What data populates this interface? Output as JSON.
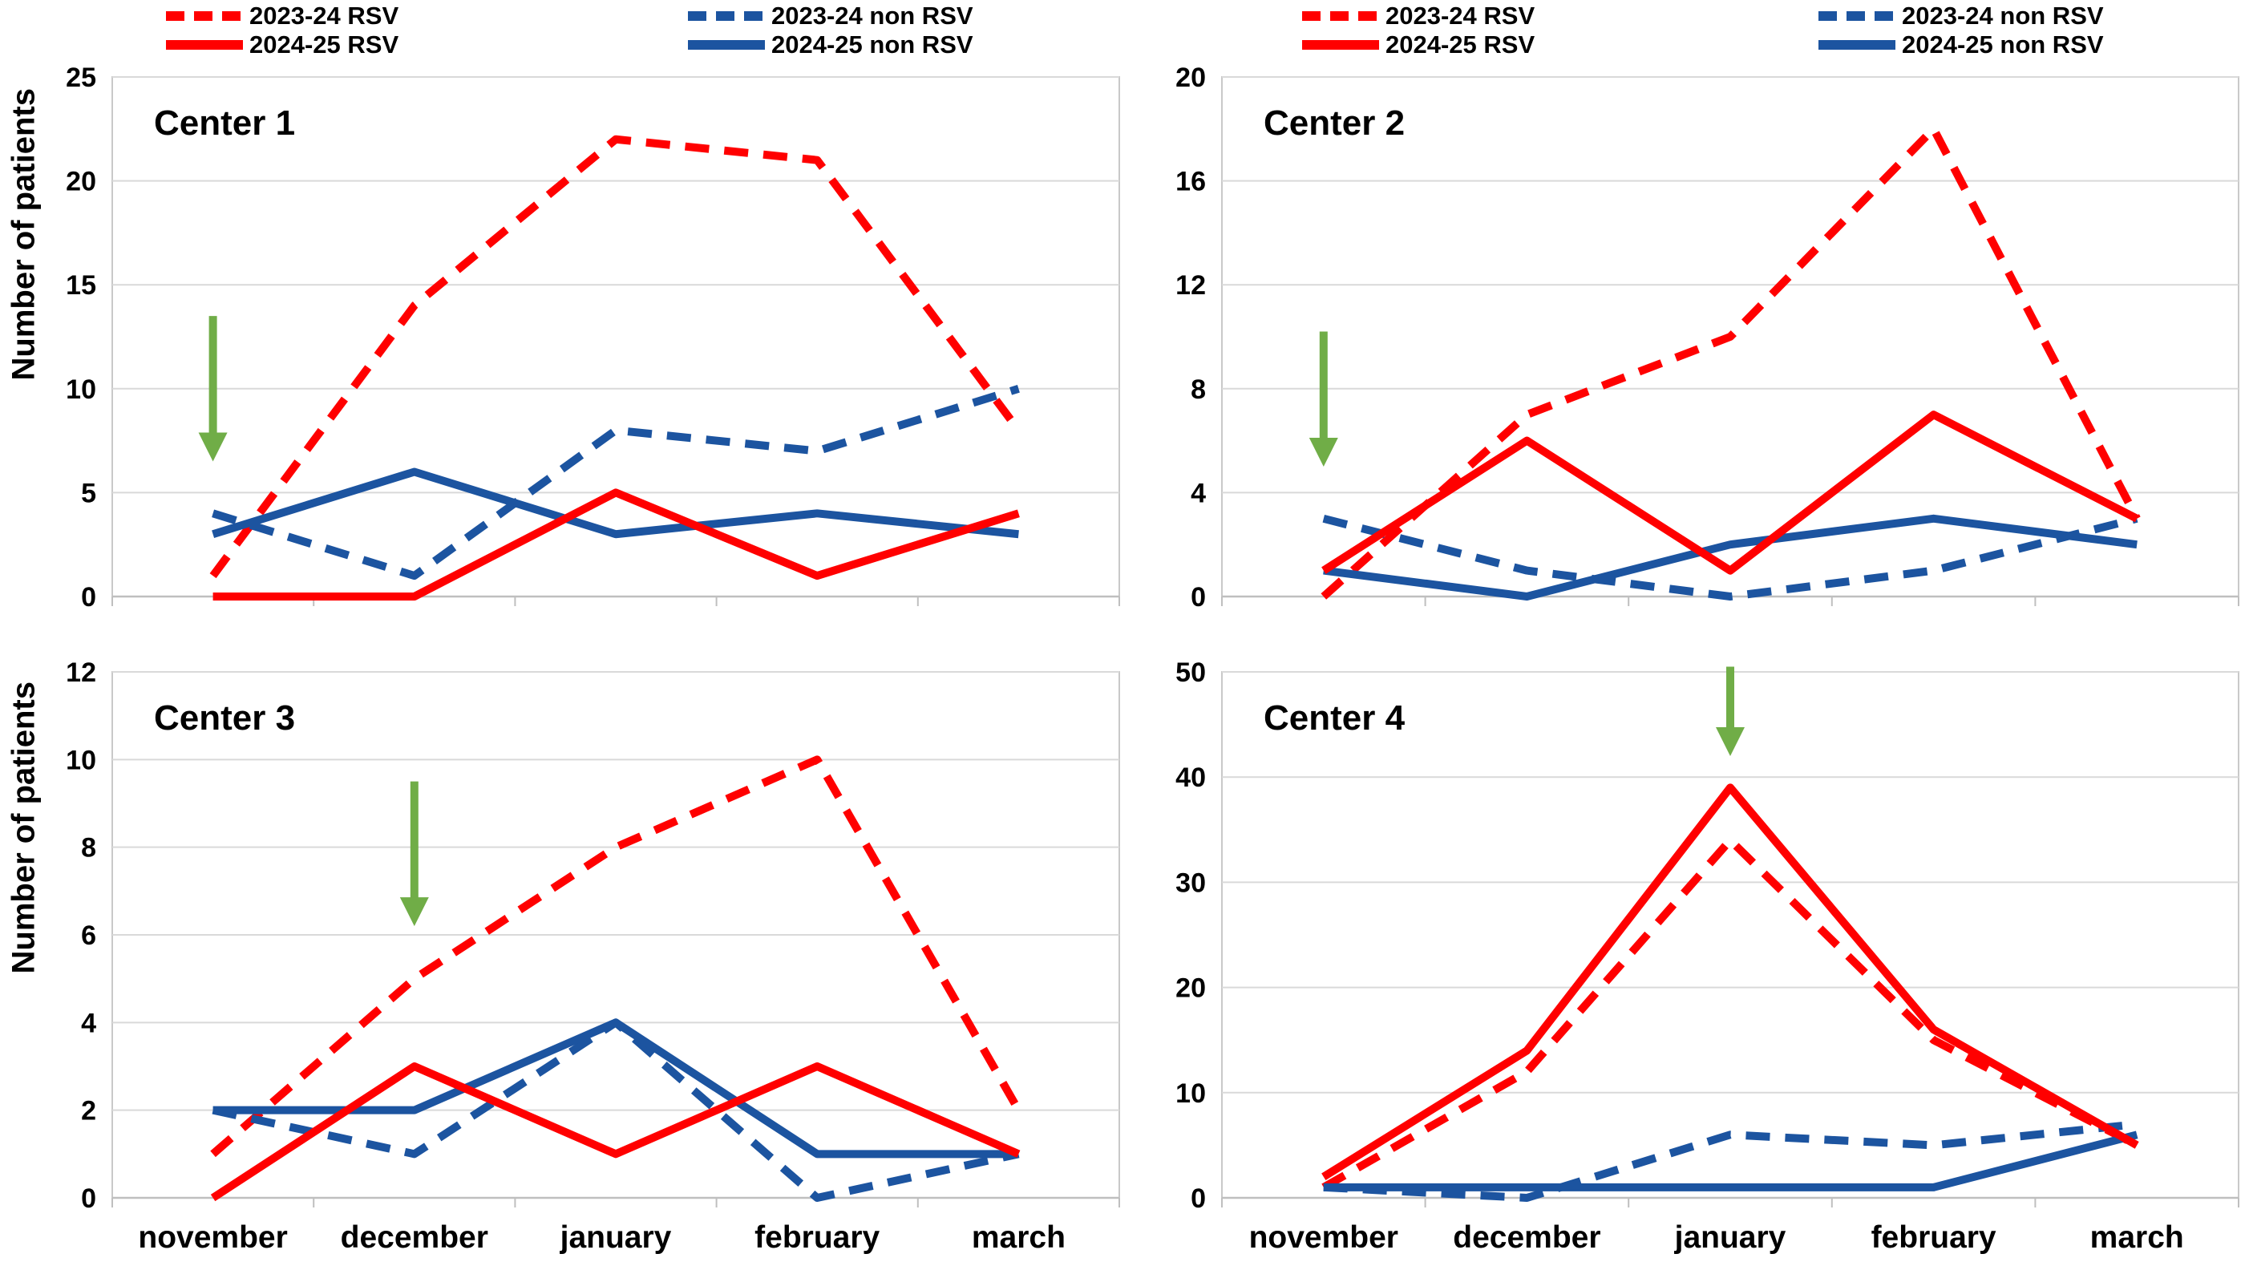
{
  "ylabel": "Number of patients",
  "months": [
    "november",
    "december",
    "january",
    "february",
    "march"
  ],
  "colors": {
    "rsv_red": "#FF0000",
    "non_rsv_blue": "#1C54A0",
    "arrow_green": "#70AD47",
    "gridline": "#D9D9D9",
    "axis_line": "#BFBFBF",
    "plot_border": "#C9C9C9",
    "text": "#000000"
  },
  "legend": {
    "items": [
      {
        "label": "2023-24 RSV",
        "style": "dashed",
        "color_key": "rsv_red"
      },
      {
        "label": "2024-25 RSV",
        "style": "solid",
        "color_key": "rsv_red"
      },
      {
        "label": "2023-24 non RSV",
        "style": "dashed",
        "color_key": "non_rsv_blue"
      },
      {
        "label": "2024-25 non RSV",
        "style": "solid",
        "color_key": "non_rsv_blue"
      }
    ]
  },
  "chart_data": [
    {
      "type": "line",
      "title": "Center 1",
      "xlabel": "",
      "ylabel": "Number of patients",
      "ylim": [
        0,
        25
      ],
      "ytick_step": 5,
      "grid": true,
      "categories": [
        "november",
        "december",
        "january",
        "february",
        "march"
      ],
      "series": [
        {
          "name": "2023-24 RSV",
          "style": "dashed",
          "color_key": "rsv_red",
          "values": [
            1,
            14,
            22,
            21,
            8
          ]
        },
        {
          "name": "2023-24 non RSV",
          "style": "dashed",
          "color_key": "non_rsv_blue",
          "values": [
            4,
            1,
            8,
            7,
            10
          ]
        },
        {
          "name": "2024-25 non RSV",
          "style": "solid",
          "color_key": "non_rsv_blue",
          "values": [
            3,
            6,
            3,
            4,
            3
          ]
        },
        {
          "name": "2024-25 RSV",
          "style": "solid",
          "color_key": "rsv_red",
          "values": [
            0,
            0,
            5,
            1,
            4
          ]
        }
      ],
      "arrow": {
        "month_index": 0,
        "from_value": 13.5,
        "to_value": 6.5
      }
    },
    {
      "type": "line",
      "title": "Center 2",
      "xlabel": "",
      "ylabel": "",
      "ylim": [
        0,
        20
      ],
      "ytick_step": 4,
      "grid": true,
      "categories": [
        "november",
        "december",
        "january",
        "february",
        "march"
      ],
      "series": [
        {
          "name": "2023-24 RSV",
          "style": "dashed",
          "color_key": "rsv_red",
          "values": [
            0,
            7,
            10,
            18,
            3
          ]
        },
        {
          "name": "2023-24 non RSV",
          "style": "dashed",
          "color_key": "non_rsv_blue",
          "values": [
            3,
            1,
            0,
            1,
            3
          ]
        },
        {
          "name": "2024-25 non RSV",
          "style": "solid",
          "color_key": "non_rsv_blue",
          "values": [
            1,
            0,
            2,
            3,
            2
          ]
        },
        {
          "name": "2024-25 RSV",
          "style": "solid",
          "color_key": "rsv_red",
          "values": [
            1,
            6,
            1,
            7,
            3
          ]
        }
      ],
      "arrow": {
        "month_index": 0,
        "from_value": 10.2,
        "to_value": 5.0
      }
    },
    {
      "type": "line",
      "title": "Center 3",
      "xlabel": "",
      "ylabel": "Number of patients",
      "ylim": [
        0,
        12
      ],
      "ytick_step": 2,
      "grid": true,
      "categories": [
        "november",
        "december",
        "january",
        "february",
        "march"
      ],
      "series": [
        {
          "name": "2023-24 RSV",
          "style": "dashed",
          "color_key": "rsv_red",
          "values": [
            1,
            5,
            8,
            10,
            2
          ]
        },
        {
          "name": "2023-24 non RSV",
          "style": "dashed",
          "color_key": "non_rsv_blue",
          "values": [
            2,
            1,
            4,
            0,
            1
          ]
        },
        {
          "name": "2024-25 non RSV",
          "style": "solid",
          "color_key": "non_rsv_blue",
          "values": [
            2,
            2,
            4,
            1,
            1
          ]
        },
        {
          "name": "2024-25 RSV",
          "style": "solid",
          "color_key": "rsv_red",
          "values": [
            0,
            3,
            1,
            3,
            1
          ]
        }
      ],
      "arrow": {
        "month_index": 1,
        "from_value": 9.5,
        "to_value": 6.2
      }
    },
    {
      "type": "line",
      "title": "Center 4",
      "xlabel": "",
      "ylabel": "",
      "ylim": [
        0,
        50
      ],
      "ytick_step": 10,
      "grid": true,
      "categories": [
        "november",
        "december",
        "january",
        "february",
        "march"
      ],
      "series": [
        {
          "name": "2023-24 RSV",
          "style": "dashed",
          "color_key": "rsv_red",
          "values": [
            1,
            12,
            34,
            15,
            5
          ]
        },
        {
          "name": "2023-24 non RSV",
          "style": "dashed",
          "color_key": "non_rsv_blue",
          "values": [
            1,
            0,
            6,
            5,
            7
          ]
        },
        {
          "name": "2024-25 non RSV",
          "style": "solid",
          "color_key": "non_rsv_blue",
          "values": [
            1,
            1,
            1,
            1,
            6
          ]
        },
        {
          "name": "2024-25 RSV",
          "style": "solid",
          "color_key": "rsv_red",
          "values": [
            2,
            14,
            39,
            16,
            5
          ]
        }
      ],
      "arrow": {
        "month_index": 2,
        "from_value": 50.5,
        "to_value": 42.0
      }
    }
  ]
}
